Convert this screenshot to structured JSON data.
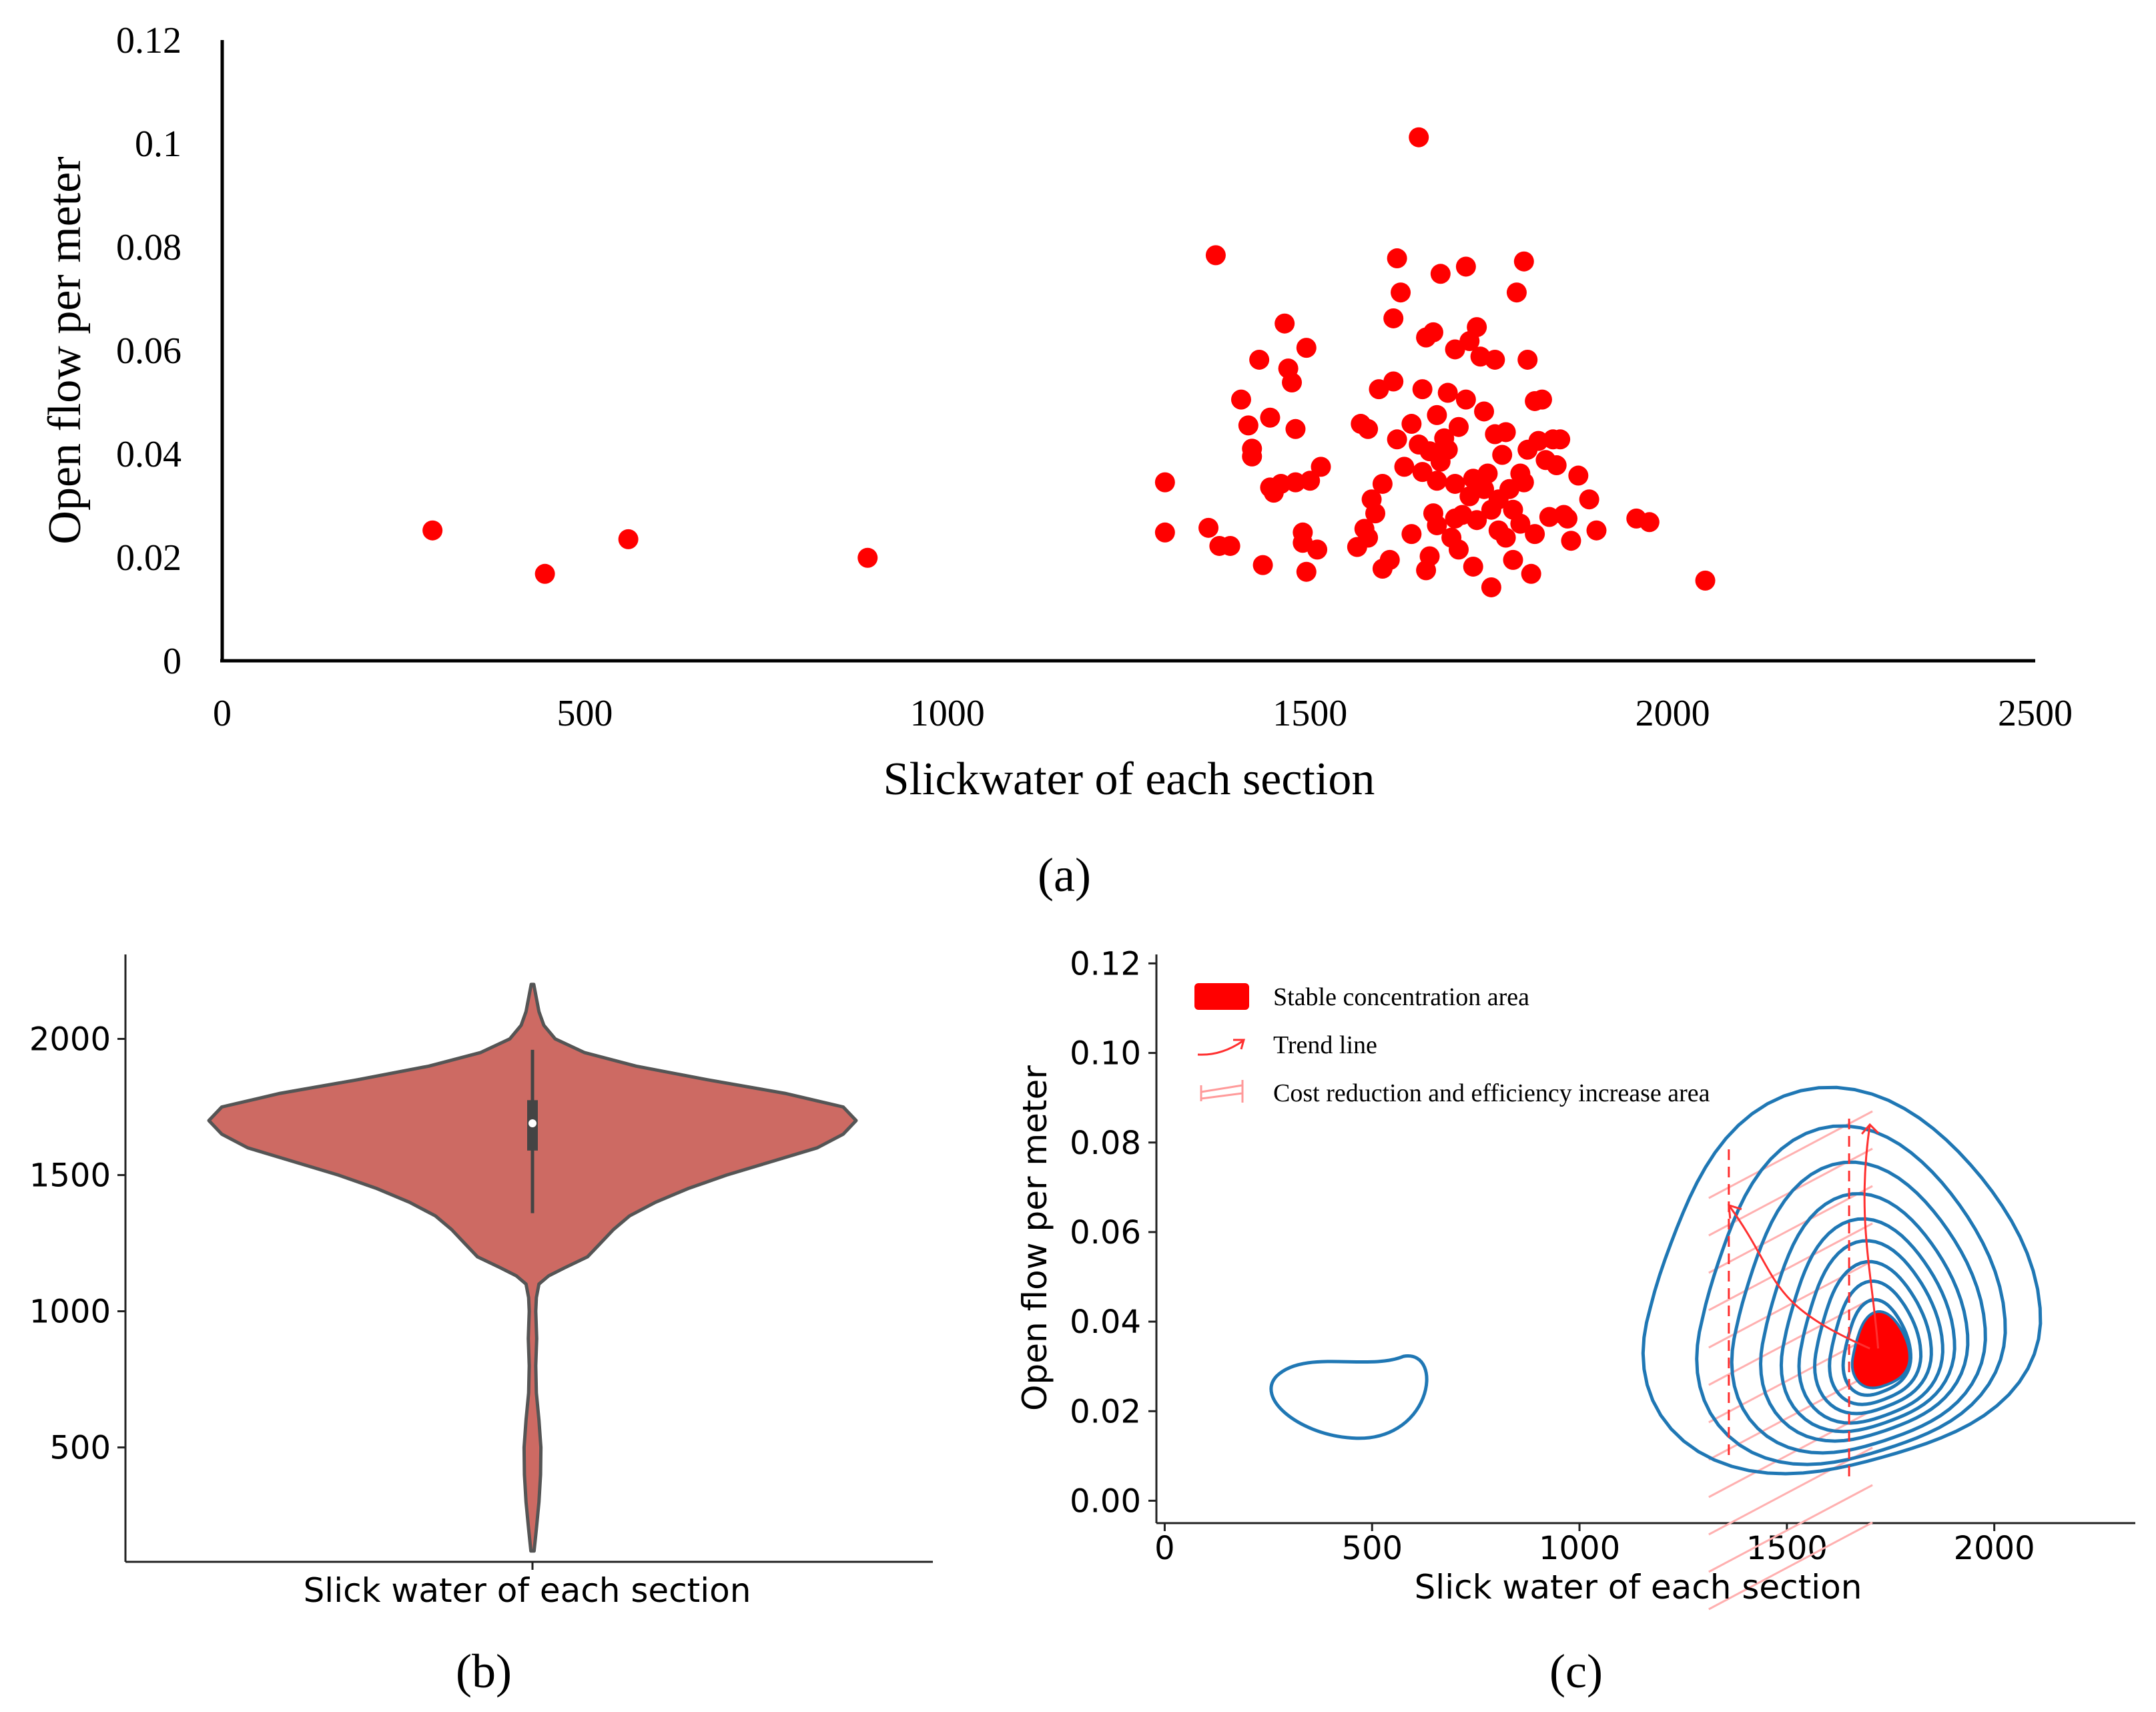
{
  "chart_data": [
    {
      "panel": "a",
      "type": "scatter",
      "panel_label": "(a)",
      "xlabel": "Slickwater of each section",
      "ylabel": "Open flow per meter",
      "xlim": [
        0,
        2500
      ],
      "ylim": [
        0,
        0.12
      ],
      "xticks": [
        "0",
        "500",
        "1000",
        "1500",
        "2000",
        "2500"
      ],
      "yticks": [
        "0",
        "0.02",
        "0.04",
        "0.06",
        "0.08",
        "0.1",
        "0.12"
      ],
      "marker_color": "#ff0000",
      "points": [
        [
          290,
          0.0252
        ],
        [
          445,
          0.0168
        ],
        [
          560,
          0.0235
        ],
        [
          890,
          0.0199
        ],
        [
          1300,
          0.0345
        ],
        [
          1300,
          0.0248
        ],
        [
          1360,
          0.0257
        ],
        [
          1370,
          0.0784
        ],
        [
          1375,
          0.0222
        ],
        [
          1390,
          0.0222
        ],
        [
          1405,
          0.0505
        ],
        [
          1415,
          0.0455
        ],
        [
          1420,
          0.041
        ],
        [
          1420,
          0.0395
        ],
        [
          1430,
          0.0582
        ],
        [
          1435,
          0.0185
        ],
        [
          1445,
          0.0335
        ],
        [
          1445,
          0.047
        ],
        [
          1450,
          0.0325
        ],
        [
          1460,
          0.0342
        ],
        [
          1465,
          0.0652
        ],
        [
          1470,
          0.0565
        ],
        [
          1475,
          0.0538
        ],
        [
          1480,
          0.0345
        ],
        [
          1480,
          0.0448
        ],
        [
          1490,
          0.0228
        ],
        [
          1490,
          0.0248
        ],
        [
          1495,
          0.0172
        ],
        [
          1495,
          0.0605
        ],
        [
          1500,
          0.0348
        ],
        [
          1510,
          0.0215
        ],
        [
          1515,
          0.0375
        ],
        [
          1565,
          0.022
        ],
        [
          1570,
          0.0458
        ],
        [
          1575,
          0.0255
        ],
        [
          1580,
          0.0448
        ],
        [
          1580,
          0.0238
        ],
        [
          1585,
          0.0312
        ],
        [
          1590,
          0.0285
        ],
        [
          1595,
          0.0525
        ],
        [
          1600,
          0.0342
        ],
        [
          1600,
          0.0178
        ],
        [
          1610,
          0.0195
        ],
        [
          1615,
          0.054
        ],
        [
          1615,
          0.0662
        ],
        [
          1620,
          0.0778
        ],
        [
          1620,
          0.0428
        ],
        [
          1625,
          0.0712
        ],
        [
          1630,
          0.0375
        ],
        [
          1640,
          0.0458
        ],
        [
          1640,
          0.0245
        ],
        [
          1650,
          0.1012
        ],
        [
          1650,
          0.0418
        ],
        [
          1655,
          0.0365
        ],
        [
          1655,
          0.0525
        ],
        [
          1660,
          0.0625
        ],
        [
          1660,
          0.0175
        ],
        [
          1665,
          0.0202
        ],
        [
          1665,
          0.0405
        ],
        [
          1670,
          0.0635
        ],
        [
          1670,
          0.0285
        ],
        [
          1675,
          0.0262
        ],
        [
          1675,
          0.0348
        ],
        [
          1675,
          0.0475
        ],
        [
          1680,
          0.0748
        ],
        [
          1680,
          0.0385
        ],
        [
          1685,
          0.043
        ],
        [
          1690,
          0.0518
        ],
        [
          1690,
          0.0408
        ],
        [
          1695,
          0.0238
        ],
        [
          1700,
          0.0275
        ],
        [
          1700,
          0.0342
        ],
        [
          1700,
          0.0602
        ],
        [
          1705,
          0.0215
        ],
        [
          1705,
          0.0452
        ],
        [
          1710,
          0.0282
        ],
        [
          1715,
          0.0505
        ],
        [
          1715,
          0.0762
        ],
        [
          1720,
          0.0318
        ],
        [
          1720,
          0.0618
        ],
        [
          1725,
          0.0182
        ],
        [
          1725,
          0.0352
        ],
        [
          1730,
          0.0272
        ],
        [
          1730,
          0.0645
        ],
        [
          1735,
          0.0588
        ],
        [
          1740,
          0.0332
        ],
        [
          1740,
          0.0482
        ],
        [
          1745,
          0.0362
        ],
        [
          1750,
          0.0142
        ],
        [
          1750,
          0.0292
        ],
        [
          1755,
          0.0438
        ],
        [
          1755,
          0.0582
        ],
        [
          1760,
          0.0252
        ],
        [
          1760,
          0.0312
        ],
        [
          1765,
          0.0398
        ],
        [
          1770,
          0.0442
        ],
        [
          1770,
          0.0238
        ],
        [
          1775,
          0.0332
        ],
        [
          1780,
          0.0292
        ],
        [
          1780,
          0.0195
        ],
        [
          1785,
          0.0712
        ],
        [
          1790,
          0.0362
        ],
        [
          1790,
          0.0265
        ],
        [
          1795,
          0.0345
        ],
        [
          1795,
          0.0772
        ],
        [
          1800,
          0.0408
        ],
        [
          1800,
          0.0582
        ],
        [
          1805,
          0.0168
        ],
        [
          1810,
          0.0245
        ],
        [
          1810,
          0.0502
        ],
        [
          1815,
          0.0425
        ],
        [
          1820,
          0.0505
        ],
        [
          1825,
          0.0388
        ],
        [
          1830,
          0.0278
        ],
        [
          1835,
          0.0428
        ],
        [
          1840,
          0.0378
        ],
        [
          1845,
          0.0428
        ],
        [
          1850,
          0.0282
        ],
        [
          1855,
          0.0275
        ],
        [
          1860,
          0.0232
        ],
        [
          1870,
          0.0358
        ],
        [
          1885,
          0.0312
        ],
        [
          1895,
          0.0252
        ],
        [
          1950,
          0.0275
        ],
        [
          1968,
          0.0268
        ],
        [
          2045,
          0.0155
        ]
      ]
    },
    {
      "panel": "b",
      "type": "violin",
      "panel_label": "(b)",
      "xlabel": "Slick water of each section",
      "ylim": [
        80,
        2310
      ],
      "yticks": [
        500,
        1000,
        1500,
        2000
      ],
      "fill_color": "#cd6a63",
      "edge_color": "#555555",
      "density_profile": [
        [
          120,
          0.005
        ],
        [
          200,
          0.012
        ],
        [
          300,
          0.02
        ],
        [
          400,
          0.025
        ],
        [
          500,
          0.026
        ],
        [
          600,
          0.02
        ],
        [
          700,
          0.012
        ],
        [
          800,
          0.01
        ],
        [
          900,
          0.013
        ],
        [
          1000,
          0.01
        ],
        [
          1050,
          0.012
        ],
        [
          1100,
          0.02
        ],
        [
          1130,
          0.05
        ],
        [
          1160,
          0.1
        ],
        [
          1200,
          0.17
        ],
        [
          1250,
          0.21
        ],
        [
          1300,
          0.25
        ],
        [
          1350,
          0.3
        ],
        [
          1400,
          0.38
        ],
        [
          1450,
          0.48
        ],
        [
          1500,
          0.6
        ],
        [
          1550,
          0.74
        ],
        [
          1600,
          0.88
        ],
        [
          1650,
          0.96
        ],
        [
          1700,
          1.0
        ],
        [
          1750,
          0.96
        ],
        [
          1800,
          0.78
        ],
        [
          1850,
          0.54
        ],
        [
          1900,
          0.32
        ],
        [
          1950,
          0.16
        ],
        [
          2000,
          0.07
        ],
        [
          2050,
          0.035
        ],
        [
          2100,
          0.02
        ],
        [
          2150,
          0.012
        ],
        [
          2200,
          0.004
        ]
      ],
      "box": {
        "q1": 1590,
        "median": 1690,
        "q3": 1775,
        "whisker_low": 1360,
        "whisker_high": 1960
      }
    },
    {
      "panel": "c",
      "type": "contour",
      "panel_label": "(c)",
      "xlabel": "Slick water of each section",
      "ylabel": "Open flow per meter",
      "xlim": [
        -20,
        2340
      ],
      "ylim": [
        -0.005,
        0.122
      ],
      "xticks": [
        "0",
        "500",
        "1000",
        "1500",
        "2000"
      ],
      "yticks": [
        "0.00",
        "0.02",
        "0.04",
        "0.06",
        "0.08",
        "0.10",
        "0.12"
      ],
      "contour_color": "#1f77b4",
      "accent_color": "#ff0000",
      "legend": [
        {
          "label": "Stable concentration area",
          "symbol": "patch"
        },
        {
          "label": "Trend line",
          "symbol": "arrow"
        },
        {
          "label": "Cost reduction and efficiency increase area",
          "symbol": "hatch"
        }
      ],
      "levels": [
        {
          "cx": 1620,
          "cy": 0.043,
          "rx": 470,
          "ry": 0.0445
        },
        {
          "cx": 1645,
          "cy": 0.0405,
          "rx": 365,
          "ry": 0.039
        },
        {
          "cx": 1665,
          "cy": 0.0385,
          "rx": 300,
          "ry": 0.0335
        },
        {
          "cx": 1680,
          "cy": 0.037,
          "rx": 245,
          "ry": 0.0285
        },
        {
          "cx": 1690,
          "cy": 0.0358,
          "rx": 205,
          "ry": 0.0245
        },
        {
          "cx": 1698,
          "cy": 0.0348,
          "rx": 170,
          "ry": 0.021
        },
        {
          "cx": 1704,
          "cy": 0.034,
          "rx": 138,
          "ry": 0.0175
        },
        {
          "cx": 1710,
          "cy": 0.0333,
          "rx": 108,
          "ry": 0.0142
        },
        {
          "cx": 1715,
          "cy": 0.0327,
          "rx": 80,
          "ry": 0.011
        }
      ],
      "core": {
        "cx": 1725,
        "cy": 0.0325,
        "rx": 68,
        "ry": 0.0088
      },
      "island": {
        "cx": 440,
        "cy": 0.024,
        "rx": 170,
        "ry": 0.0055
      },
      "dashed_x": [
        1360,
        1650
      ],
      "trend_up": {
        "from": [
          1720,
          0.034
        ],
        "to": [
          1700,
          0.084
        ]
      },
      "trend_left": {
        "from": [
          1700,
          0.034
        ],
        "to": [
          1360,
          0.066
        ]
      }
    }
  ]
}
